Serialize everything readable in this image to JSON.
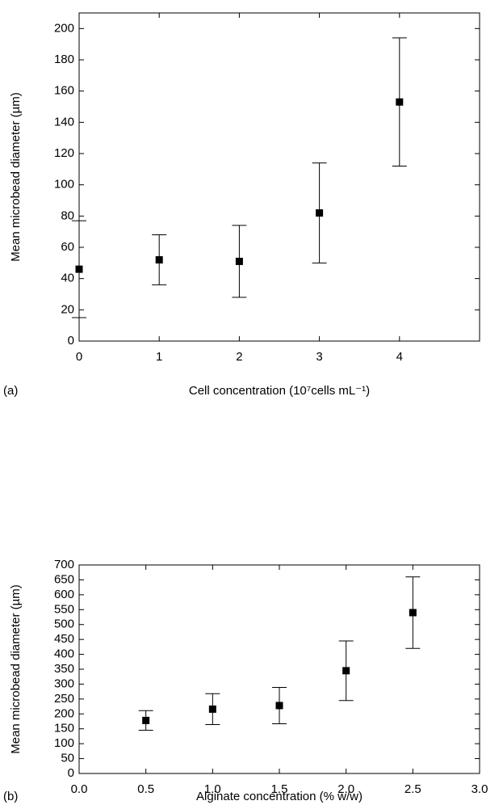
{
  "chart_data": [
    {
      "type": "scatter",
      "panel_label": "(a)",
      "x_label": "Cell concentration (10⁷cells mL⁻¹)",
      "y_label": "Mean microbead diameter (µm)",
      "x": [
        0,
        1,
        2,
        3,
        4
      ],
      "series": [
        {
          "color": "#000000",
          "values": [
            46,
            52,
            51,
            82,
            153
          ],
          "errors": [
            31,
            16,
            23,
            32,
            41
          ]
        }
      ],
      "xlim": [
        0,
        5
      ],
      "xticks": [
        0,
        1,
        2,
        3,
        4
      ],
      "ylim": [
        0,
        210
      ],
      "yticks": [
        0,
        20,
        40,
        60,
        80,
        100,
        120,
        140,
        160,
        180,
        200
      ]
    },
    {
      "type": "scatter",
      "panel_label": "(b)",
      "x_label": "Alginate concentration (% w/w)",
      "y_label": "Mean microbead diameter (µm)",
      "x": [
        0.5,
        1.0,
        1.5,
        2.0,
        2.5
      ],
      "series": [
        {
          "color": "#000000",
          "values": [
            178,
            216,
            228,
            345,
            540
          ],
          "errors": [
            33,
            52,
            61,
            100,
            120
          ]
        }
      ],
      "xlim": [
        0,
        3
      ],
      "xticks": [
        {
          "value": 0,
          "label": "0.0"
        },
        0.5,
        {
          "value": 1,
          "label": "1.0"
        },
        1.5,
        {
          "value": 2,
          "label": "2.0"
        },
        2.5,
        {
          "value": 3,
          "label": "3.0"
        }
      ],
      "ylim": [
        0,
        700
      ],
      "yticks": [
        0,
        50,
        100,
        150,
        200,
        250,
        300,
        350,
        400,
        450,
        500,
        550,
        600,
        650,
        700
      ]
    }
  ]
}
